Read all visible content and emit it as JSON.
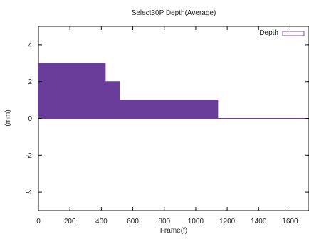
{
  "chart_data": {
    "type": "area",
    "title": "Select30P Depth(Average)",
    "xlabel": "Frame(f)",
    "ylabel": "(mm)",
    "xlim": [
      0,
      1720
    ],
    "ylim": [
      -5,
      5
    ],
    "xticks": [
      0,
      200,
      400,
      600,
      800,
      1000,
      1200,
      1400,
      1600
    ],
    "xtick_labels": [
      "0",
      "200",
      "400",
      "600",
      "800",
      "1000",
      "1200",
      "1400",
      "1600"
    ],
    "yticks": [
      4,
      2,
      0,
      -2,
      -4
    ],
    "ytick_labels": [
      "4",
      "2",
      "0",
      "-2",
      "-4"
    ],
    "grid": false,
    "legend_position": "top-right",
    "series": [
      {
        "name": "Depth",
        "color": "#6a3d9a",
        "x": [
          0,
          425,
          425,
          515,
          515,
          1140,
          1140,
          1720
        ],
        "y": [
          3.0,
          3.0,
          2.0,
          2.0,
          1.0,
          1.0,
          0.0,
          0.0
        ]
      }
    ]
  }
}
